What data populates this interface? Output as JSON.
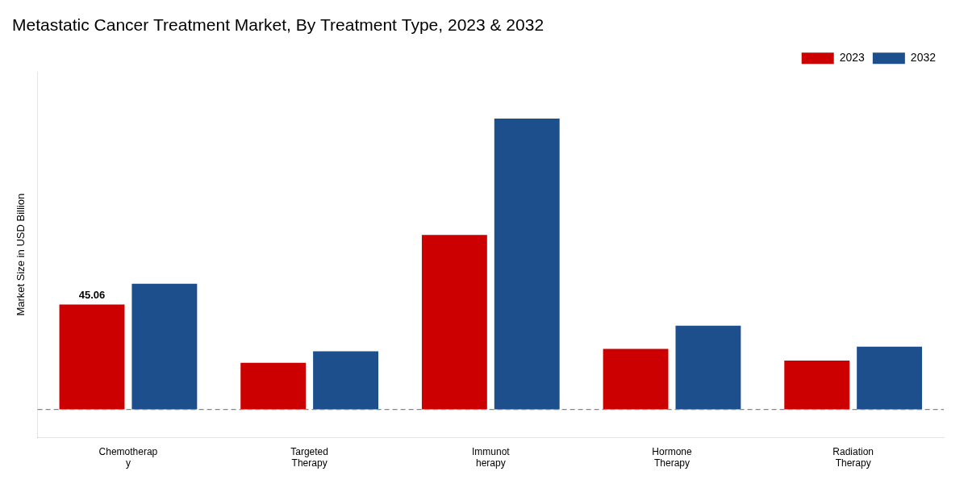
{
  "chart_data": {
    "type": "bar",
    "title": "Metastatic Cancer Treatment Market, By Treatment Type, 2023 & 2032",
    "ylabel": "Market Size in USD Billion",
    "categories": [
      "Chemotherap\ny",
      "Targeted\nTherapy",
      "Immunot\nherapy",
      "Hormone\nTherapy",
      "Radiation\nTherapy"
    ],
    "series": [
      {
        "name": "2023",
        "color": "#cc0000",
        "values": [
          45.06,
          20.0,
          75.0,
          26.0,
          21.0
        ]
      },
      {
        "name": "2032",
        "color": "#1c4f8c",
        "values": [
          54.0,
          25.0,
          125.0,
          36.0,
          27.0
        ]
      }
    ],
    "ylim": [
      -12,
      145
    ],
    "yticks": [],
    "tick_labels": "x",
    "grid": false,
    "legend": "upper right",
    "annotations": [
      {
        "text": "45.06",
        "category": "Chemotherap\ny",
        "series": "2023"
      }
    ],
    "hlines": [
      {
        "y": 0,
        "line_style": "dashed"
      }
    ]
  }
}
